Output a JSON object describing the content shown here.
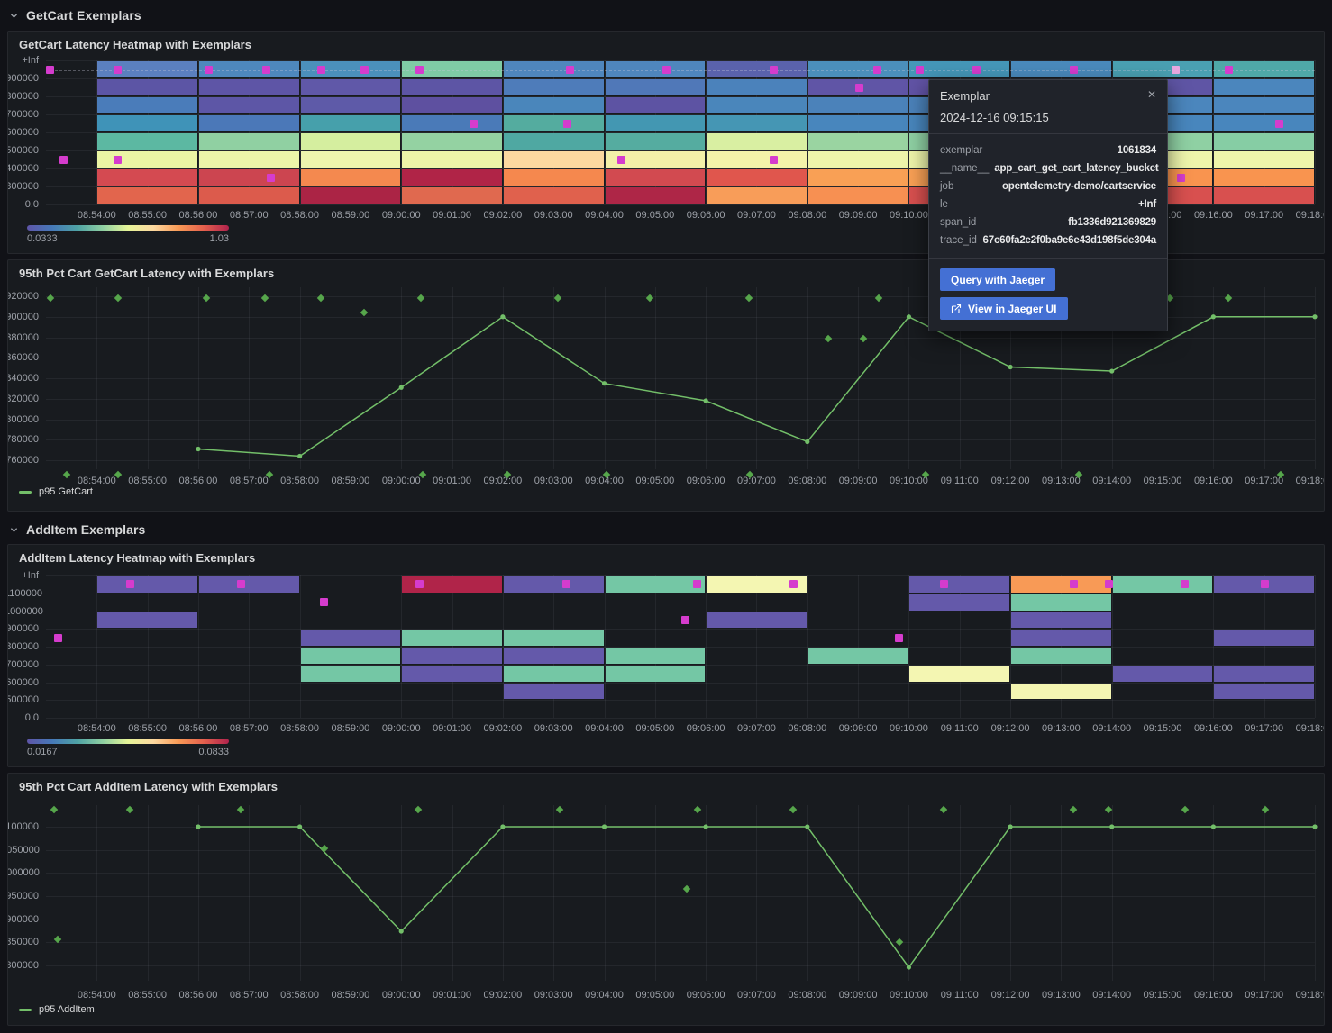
{
  "icons": {
    "close": "✕"
  },
  "colors": {
    "accent_green": "#73bf69",
    "diamond_green": "#56a64b",
    "exemplar_magenta": "#d53ccd",
    "exemplar_highlight": "#e9a8e0",
    "button_blue": "#4470d4"
  },
  "sections": [
    {
      "title": "GetCart Exemplars"
    },
    {
      "title": "AddItem Exemplars"
    }
  ],
  "x_axis": {
    "start": "08:53:00",
    "minutes": 25,
    "ticks": [
      "08:54:00",
      "08:55:00",
      "08:56:00",
      "08:57:00",
      "08:58:00",
      "08:59:00",
      "09:00:00",
      "09:01:00",
      "09:02:00",
      "09:03:00",
      "09:04:00",
      "09:05:00",
      "09:06:00",
      "09:07:00",
      "09:08:00",
      "09:09:00",
      "09:10:00",
      "09:11:00",
      "09:12:00",
      "09:13:00",
      "09:14:00",
      "09:15:00",
      "09:16:00",
      "09:17:00",
      "09:18:00"
    ]
  },
  "tooltip": {
    "title": "Exemplar",
    "timestamp": "2024-12-16 09:15:15",
    "rows": [
      {
        "key": "exemplar",
        "value": "1061834"
      },
      {
        "key": "__name__",
        "value": "app_cart_get_cart_latency_bucket"
      },
      {
        "key": "job",
        "value": "opentelemetry-demo/cartservice"
      },
      {
        "key": "le",
        "value": "+Inf"
      },
      {
        "key": "span_id",
        "value": "fb1336d921369829"
      },
      {
        "key": "trace_id",
        "value": "67c60fa2e2f0ba9e6e43d198f5de304a"
      }
    ],
    "buttons": [
      {
        "label": "Query with Jaeger"
      },
      {
        "label": "View in Jaeger UI",
        "icon": "external-link"
      }
    ]
  },
  "chart_data": [
    {
      "id": "getcart_heatmap",
      "type": "heatmap",
      "title": "GetCart Latency Heatmap with Exemplars",
      "y_labels": [
        "+Inf",
        "900000",
        "800000",
        "700000",
        "600000",
        "500000",
        "400000",
        "300000",
        "0.0"
      ],
      "bucket_minutes": 2,
      "dashed_row": 0,
      "scale": {
        "min_label": "0.0333",
        "max_label": "1.03"
      },
      "columns": [
        {
          "start": "08:54:00",
          "colors": [
            "#5b80bf",
            "#5c55a5",
            "#4a7cba",
            "#3f93b8",
            "#5cb8a2",
            "#ebf5a4",
            "#d44a51",
            "#e2654d"
          ]
        },
        {
          "start": "08:56:00",
          "colors": [
            "#4e88bd",
            "#5e55a6",
            "#5d56a6",
            "#4b78b8",
            "#90d0a2",
            "#ecf5a9",
            "#cc4550",
            "#dc5b4c"
          ]
        },
        {
          "start": "08:58:00",
          "colors": [
            "#4b90bb",
            "#6058a8",
            "#5e5aa8",
            "#46a0ab",
            "#d5ee9f",
            "#eef5ad",
            "#f4894f",
            "#ab2445"
          ]
        },
        {
          "start": "09:00:00",
          "colors": [
            "#7fcba5",
            "#5d55a5",
            "#5e50a0",
            "#4a7ab8",
            "#94d2a2",
            "#edf5a8",
            "#b02447",
            "#e0694f"
          ]
        },
        {
          "start": "09:02:00",
          "colors": [
            "#4f86bd",
            "#4e7cba",
            "#4a86bb",
            "#54ac9f",
            "#4fa8a2",
            "#fcd9a0",
            "#f5884e",
            "#e0614d"
          ]
        },
        {
          "start": "09:04:00",
          "colors": [
            "#4f86bd",
            "#5078b8",
            "#5d53a3",
            "#4397b2",
            "#55aca0",
            "#f3f0a8",
            "#d24a50",
            "#ae2647"
          ]
        },
        {
          "start": "09:06:00",
          "colors": [
            "#5a62ac",
            "#4b82bb",
            "#4a86bb",
            "#4596b4",
            "#d9efa2",
            "#f3f3a9",
            "#e0564d",
            "#f89d59"
          ]
        },
        {
          "start": "09:08:00",
          "colors": [
            "#4b8fbb",
            "#6055a6",
            "#4b82ba",
            "#4886bd",
            "#9ad4a1",
            "#eef5aa",
            "#f9a055",
            "#f79052"
          ]
        },
        {
          "start": "09:10:00",
          "colors": [
            "#4597b8",
            "#6153a5",
            "#4b82ba",
            "#4886bd",
            "#8fd0a3",
            "#eef5aa",
            "#f9a055",
            "#d8504f"
          ]
        },
        {
          "start": "09:12:00",
          "colors": [
            "#4a8abc",
            "#5f55a5",
            "#4b82ba",
            "#4886bd",
            "#8fd0a3",
            "#eef5aa",
            "#f9a055",
            "#d8504f"
          ]
        },
        {
          "start": "09:14:00",
          "colors": [
            "#4aa0b2",
            "#5f55a5",
            "#4b86bd",
            "#4886bd",
            "#8fd0a3",
            "#eef5ab",
            "#f9944f",
            "#d8504f"
          ]
        },
        {
          "start": "09:16:00",
          "colors": [
            "#4fa8a8",
            "#4b86bd",
            "#4b86bd",
            "#4886bd",
            "#86cda4",
            "#eef5ab",
            "#f9944f",
            "#d8504f"
          ]
        }
      ],
      "exemplars": [
        {
          "t": "08:53:05",
          "row": 0
        },
        {
          "t": "08:54:25",
          "row": 0
        },
        {
          "t": "08:56:12",
          "row": 0
        },
        {
          "t": "08:57:21",
          "row": 0
        },
        {
          "t": "08:58:25",
          "row": 0
        },
        {
          "t": "08:59:17",
          "row": 0
        },
        {
          "t": "09:00:22",
          "row": 0
        },
        {
          "t": "09:03:20",
          "row": 0
        },
        {
          "t": "09:05:13",
          "row": 0
        },
        {
          "t": "09:07:20",
          "row": 0
        },
        {
          "t": "09:09:23",
          "row": 0
        },
        {
          "t": "09:10:13",
          "row": 0
        },
        {
          "t": "09:11:20",
          "row": 0
        },
        {
          "t": "09:13:15",
          "row": 0
        },
        {
          "t": "09:16:18",
          "row": 0
        },
        {
          "t": "09:15:15",
          "row": 0,
          "highlight": true
        },
        {
          "t": "09:09:02",
          "row": 1
        },
        {
          "t": "09:01:25",
          "row": 3
        },
        {
          "t": "09:03:16",
          "row": 3
        },
        {
          "t": "09:17:18",
          "row": 3
        },
        {
          "t": "08:53:21",
          "row": 5
        },
        {
          "t": "08:54:25",
          "row": 5
        },
        {
          "t": "09:04:20",
          "row": 5
        },
        {
          "t": "09:07:20",
          "row": 5
        },
        {
          "t": "08:57:26",
          "row": 6
        },
        {
          "t": "09:15:22",
          "row": 6
        }
      ]
    },
    {
      "id": "getcart_p95",
      "type": "line",
      "title": "95th Pct Cart GetCart Latency with Exemplars",
      "legend": "p95 GetCart",
      "y_ticks": [
        920000,
        900000,
        880000,
        860000,
        840000,
        820000,
        800000,
        780000,
        760000
      ],
      "series": [
        {
          "name": "p95 GetCart",
          "points": [
            [
              "08:56:00",
              771000
            ],
            [
              "08:58:00",
              764000
            ],
            [
              "09:00:00",
              831000
            ],
            [
              "09:02:00",
              900000
            ],
            [
              "09:04:00",
              835000
            ],
            [
              "09:06:00",
              818000
            ],
            [
              "09:08:00",
              778000
            ],
            [
              "09:10:00",
              900000
            ],
            [
              "09:12:00",
              851000
            ],
            [
              "09:14:00",
              847000
            ],
            [
              "09:16:00",
              900000
            ],
            [
              "09:18:00",
              900000
            ]
          ]
        }
      ],
      "exemplars": [
        [
          "08:53:05",
          918000
        ],
        [
          "08:54:25",
          918000
        ],
        [
          "08:56:10",
          918000
        ],
        [
          "08:57:19",
          918000
        ],
        [
          "08:58:25",
          918000
        ],
        [
          "09:00:23",
          918000
        ],
        [
          "09:03:05",
          918000
        ],
        [
          "09:04:54",
          918000
        ],
        [
          "09:06:51",
          918000
        ],
        [
          "09:09:24",
          918000
        ],
        [
          "09:15:08",
          918000
        ],
        [
          "09:16:18",
          918000
        ],
        [
          "08:59:16",
          904000
        ],
        [
          "09:08:25",
          879000
        ],
        [
          "09:09:06",
          879000
        ],
        [
          "08:53:24",
          746000
        ],
        [
          "08:54:25",
          746000
        ],
        [
          "08:57:24",
          746000
        ],
        [
          "09:00:25",
          746000
        ],
        [
          "09:02:05",
          746000
        ],
        [
          "09:04:03",
          746000
        ],
        [
          "09:06:52",
          746000
        ],
        [
          "09:10:20",
          746000
        ],
        [
          "09:13:21",
          746000
        ],
        [
          "09:17:20",
          746000
        ]
      ]
    },
    {
      "id": "additem_heatmap",
      "type": "heatmap",
      "title": "AddItem Latency Heatmap with Exemplars",
      "y_labels": [
        "+Inf",
        "1100000",
        "1000000",
        "900000",
        "800000",
        "700000",
        "600000",
        "500000",
        "0.0"
      ],
      "bucket_minutes": 2,
      "dashed_row": null,
      "scale": {
        "min_label": "0.0167",
        "max_label": "0.0833"
      },
      "columns": [
        {
          "start": "08:54:00",
          "colors": [
            "#6459aa",
            null,
            "#6459aa",
            null,
            null,
            null,
            null,
            null
          ]
        },
        {
          "start": "08:56:00",
          "colors": [
            "#6459aa",
            null,
            null,
            null,
            null,
            null,
            null,
            null
          ]
        },
        {
          "start": "08:58:00",
          "colors": [
            null,
            null,
            null,
            "#6459aa",
            "#74c7a5",
            "#74c7a5",
            null,
            null
          ]
        },
        {
          "start": "09:00:00",
          "colors": [
            "#b02449",
            null,
            null,
            "#74c7a5",
            "#6459aa",
            "#6459aa",
            null,
            null
          ]
        },
        {
          "start": "09:02:00",
          "colors": [
            "#6459aa",
            null,
            null,
            "#74c7a5",
            "#6459aa",
            "#74c7a5",
            "#6459aa",
            null
          ]
        },
        {
          "start": "09:04:00",
          "colors": [
            "#74c7a5",
            null,
            null,
            null,
            "#74c7a5",
            "#74c7a5",
            null,
            null
          ]
        },
        {
          "start": "09:06:00",
          "colors": [
            "#f4f6b2",
            null,
            "#6459aa",
            null,
            null,
            null,
            null,
            null
          ]
        },
        {
          "start": "09:08:00",
          "colors": [
            null,
            null,
            null,
            null,
            "#74c7a5",
            null,
            null,
            null
          ]
        },
        {
          "start": "09:10:00",
          "colors": [
            "#6459aa",
            "#6459aa",
            null,
            null,
            null,
            "#f4f6b2",
            null,
            null
          ]
        },
        {
          "start": "09:12:00",
          "colors": [
            "#f89a56",
            "#74c7a5",
            "#6459aa",
            "#6459aa",
            "#74c7a5",
            null,
            "#f4f6b2",
            null
          ]
        },
        {
          "start": "09:14:00",
          "colors": [
            "#74c7a5",
            null,
            null,
            null,
            null,
            "#6459aa",
            null,
            null
          ]
        },
        {
          "start": "09:16:00",
          "colors": [
            "#6459aa",
            null,
            null,
            "#6459aa",
            null,
            "#6459aa",
            "#6459aa",
            null
          ]
        }
      ],
      "exemplars": [
        {
          "t": "08:54:40",
          "row": 0
        },
        {
          "t": "08:56:51",
          "row": 0
        },
        {
          "t": "09:00:22",
          "row": 0
        },
        {
          "t": "09:03:15",
          "row": 0
        },
        {
          "t": "09:05:50",
          "row": 0
        },
        {
          "t": "09:07:44",
          "row": 0
        },
        {
          "t": "09:10:42",
          "row": 0
        },
        {
          "t": "09:13:15",
          "row": 0
        },
        {
          "t": "09:13:57",
          "row": 0
        },
        {
          "t": "09:15:26",
          "row": 0
        },
        {
          "t": "09:17:01",
          "row": 0
        },
        {
          "t": "08:58:29",
          "row": 1
        },
        {
          "t": "09:05:36",
          "row": 2
        },
        {
          "t": "08:53:14",
          "row": 3
        },
        {
          "t": "09:09:48",
          "row": 3
        }
      ]
    },
    {
      "id": "additem_p95",
      "type": "line",
      "title": "95th Pct Cart AddItem Latency with Exemplars",
      "legend": "p95 AddItem",
      "y_ticks": [
        1100000,
        1050000,
        1000000,
        950000,
        900000,
        850000,
        800000
      ],
      "series": [
        {
          "name": "p95 AddItem",
          "points": [
            [
              "08:56:00",
              1100000
            ],
            [
              "08:58:00",
              1100000
            ],
            [
              "09:00:00",
              874000
            ],
            [
              "09:02:00",
              1100000
            ],
            [
              "09:04:00",
              1100000
            ],
            [
              "09:06:00",
              1100000
            ],
            [
              "09:08:00",
              1100000
            ],
            [
              "09:10:00",
              796000
            ],
            [
              "09:12:00",
              1100000
            ],
            [
              "09:14:00",
              1100000
            ],
            [
              "09:16:00",
              1100000
            ],
            [
              "09:18:00",
              1100000
            ]
          ]
        }
      ],
      "exemplars": [
        [
          "08:53:10",
          1137000
        ],
        [
          "08:54:39",
          1137000
        ],
        [
          "08:56:50",
          1137000
        ],
        [
          "09:00:20",
          1137000
        ],
        [
          "09:03:07",
          1137000
        ],
        [
          "09:05:50",
          1137000
        ],
        [
          "09:07:43",
          1137000
        ],
        [
          "09:10:41",
          1137000
        ],
        [
          "09:13:15",
          1137000
        ],
        [
          "09:13:56",
          1137000
        ],
        [
          "09:15:27",
          1137000
        ],
        [
          "09:17:01",
          1137000
        ],
        [
          "08:53:14",
          857000
        ],
        [
          "08:58:29",
          1053000
        ],
        [
          "09:05:37",
          966000
        ],
        [
          "09:09:49",
          851000
        ]
      ]
    }
  ]
}
